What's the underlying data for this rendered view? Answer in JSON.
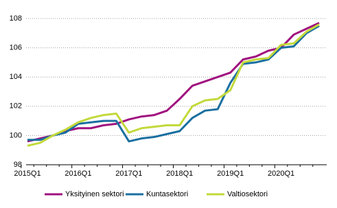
{
  "chart_data": {
    "type": "line",
    "categories": [
      "2015Q1",
      null,
      null,
      null,
      "2016Q1",
      null,
      null,
      null,
      "2017Q1",
      null,
      null,
      null,
      "2018Q1",
      null,
      null,
      null,
      "2019Q1",
      null,
      null,
      null,
      "2020Q1",
      null,
      null,
      null
    ],
    "series": [
      {
        "name": "Yksityinen sektori",
        "color": "#a0117e",
        "values": [
          99.6,
          99.8,
          100.0,
          100.3,
          100.5,
          100.5,
          100.7,
          100.8,
          101.1,
          101.3,
          101.4,
          101.7,
          102.5,
          103.4,
          103.7,
          104.0,
          104.3,
          105.2,
          105.4,
          105.8,
          106.0,
          106.9,
          107.3,
          107.7
        ]
      },
      {
        "name": "Kuntasektori",
        "color": "#1a6fa0",
        "values": [
          99.7,
          99.7,
          100.0,
          100.2,
          100.8,
          100.9,
          101.0,
          101.0,
          99.6,
          99.8,
          99.9,
          100.1,
          100.3,
          101.2,
          101.7,
          101.8,
          103.6,
          104.9,
          105.0,
          105.2,
          106.0,
          106.1,
          107.0,
          107.5
        ]
      },
      {
        "name": "Valtiosektori",
        "color": "#c3d93a",
        "values": [
          99.3,
          99.5,
          100.0,
          100.4,
          100.9,
          101.2,
          101.4,
          101.5,
          100.2,
          100.5,
          100.6,
          100.7,
          100.7,
          102.0,
          102.4,
          102.5,
          103.1,
          105.0,
          105.2,
          105.3,
          106.2,
          106.3,
          107.1,
          107.6
        ]
      }
    ],
    "ylim": [
      98,
      108
    ],
    "yticks": [
      98,
      100,
      102,
      104,
      106,
      108
    ],
    "grid": true,
    "legend": "bottom"
  }
}
